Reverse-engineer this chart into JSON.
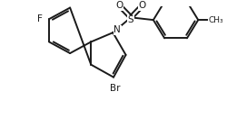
{
  "bg_color": "#ffffff",
  "line_color": "#1a1a1a",
  "line_width": 1.4,
  "font_size": 7.5,
  "label_F": "F",
  "label_Br": "Br",
  "label_N": "N",
  "label_S": "S",
  "label_O1": "O",
  "label_O2": "O"
}
